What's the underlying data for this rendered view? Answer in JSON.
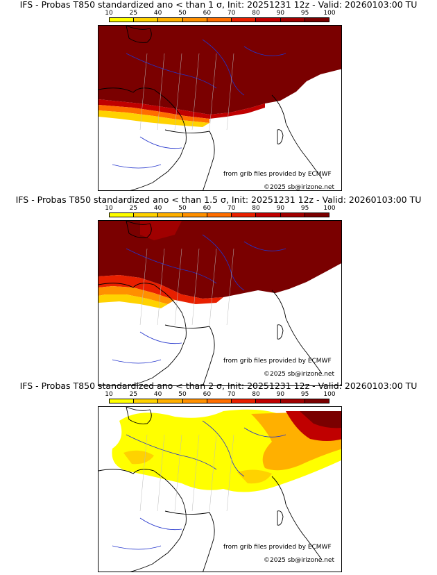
{
  "colorbar": {
    "labels": [
      "10",
      "25",
      "40",
      "50",
      "60",
      "70",
      "80",
      "90",
      "95",
      "100"
    ],
    "colors": [
      "#ffff00",
      "#ffd200",
      "#ffb000",
      "#ff9000",
      "#ff6e00",
      "#e82000",
      "#c00000",
      "#a00000",
      "#7a0000"
    ]
  },
  "panels": [
    {
      "title": "IFS - Probas T850  standardized ano < than 1 σ, Init: 20251231 12z - Valid: 20260103:00 TU",
      "credit_source": "from grib files provided by ECMWF",
      "credit_site": "©2025 sb@irizone.net",
      "field": "strong"
    },
    {
      "title": "IFS - Probas T850  standardized ano < than 1.5 σ, Init: 20251231 12z - Valid: 20260103:00 TU",
      "credit_source": "from grib files provided by ECMWF",
      "credit_site": "©2025 sb@irizone.net",
      "field": "medium"
    },
    {
      "title": "IFS - Probas T850  standardized ano < than 2 σ, Init: 20251231 12z - Valid: 20260103:00 TU",
      "credit_source": "from grib files provided by ECMWF",
      "credit_site": "©2025 sb@irizone.net",
      "field": "weak"
    }
  ]
}
